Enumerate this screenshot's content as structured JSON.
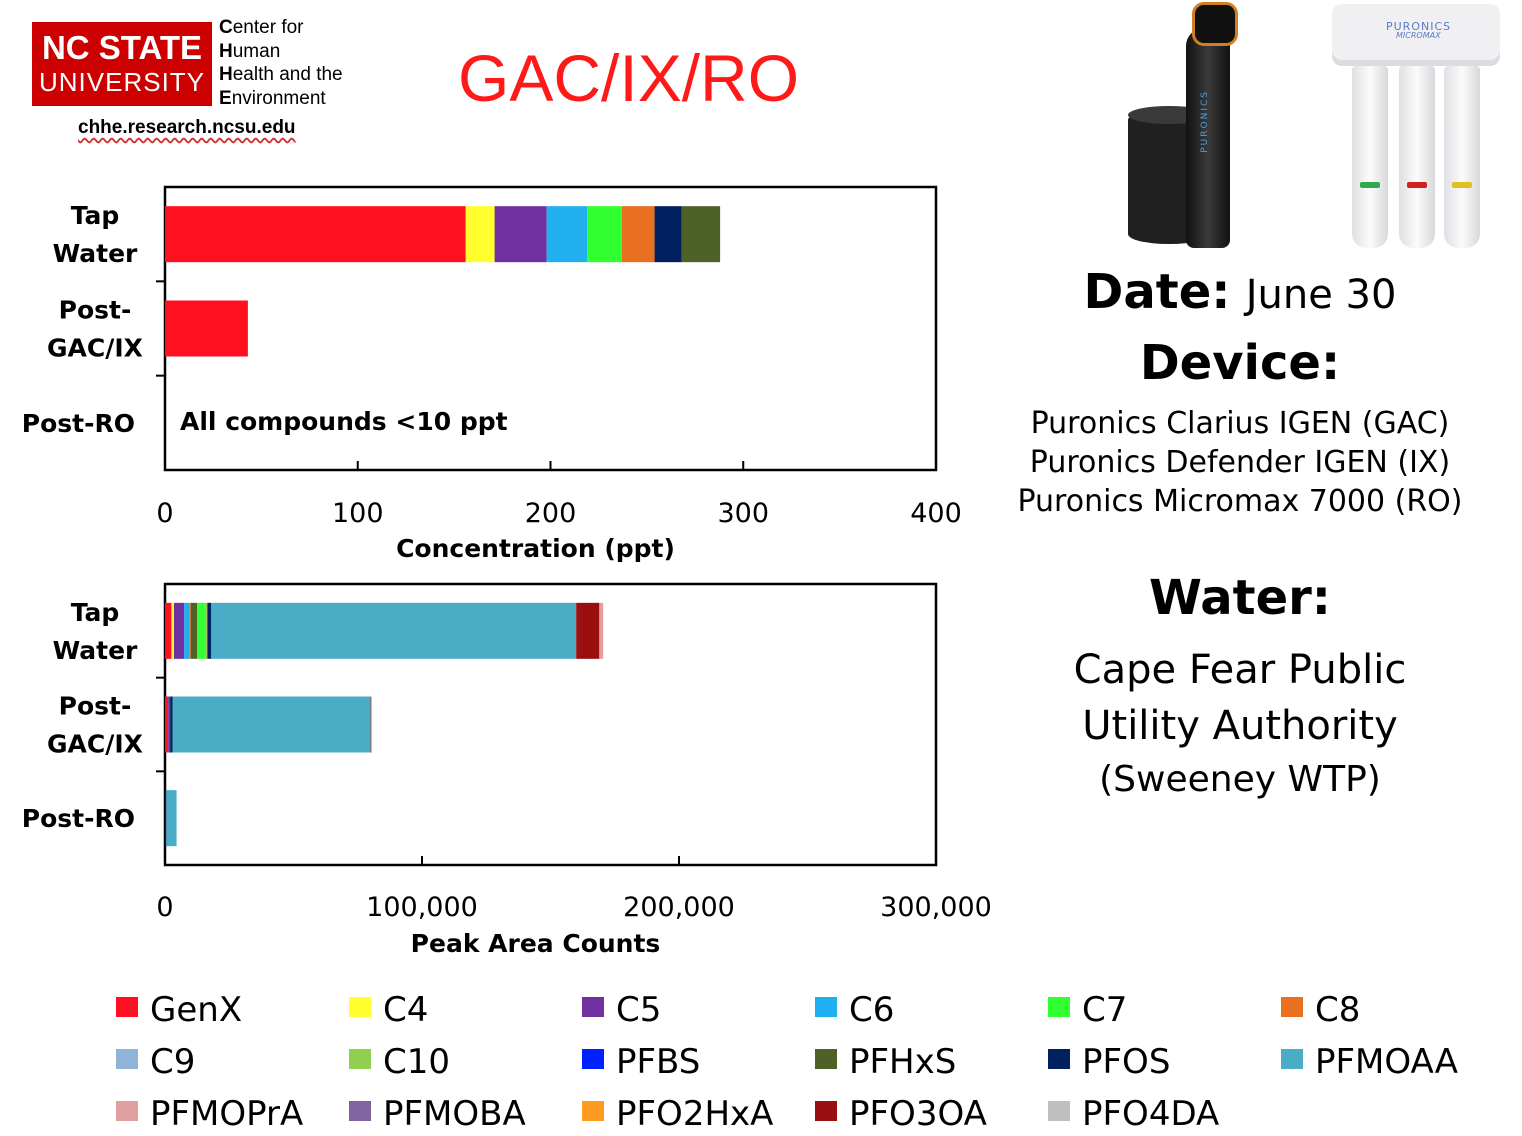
{
  "logo": {
    "line1": "NC STATE",
    "line2": "UNIVERSITY"
  },
  "center_name": [
    {
      "initial": "C",
      "rest": "enter for"
    },
    {
      "initial": "H",
      "rest": "uman"
    },
    {
      "initial": "H",
      "rest": "ealth and the"
    },
    {
      "initial": "E",
      "rest": "nvironment"
    }
  ],
  "site_url": "chhe.research.ncsu.edu",
  "title": "GAC/IX/RO",
  "info": {
    "date_label": "Date:",
    "date_value": "June 30",
    "device_label": "Device:",
    "devices": [
      "Puronics Clarius IGEN (GAC)",
      "Puronics Defender IGEN (IX)",
      "Puronics Micromax 7000 (RO)"
    ],
    "water_label": "Water:",
    "water_name_1": "Cape Fear Public",
    "water_name_2": "Utility Authority",
    "water_sub": "(Sweeney WTP)"
  },
  "products": {
    "softener_brand": "PURONICS",
    "ro_brand": "PURONICS",
    "ro_model": "MICROMAX"
  },
  "legend": [
    {
      "name": "GenX",
      "color": "#ff1020"
    },
    {
      "name": "C4",
      "color": "#ffff30"
    },
    {
      "name": "C5",
      "color": "#7030a0"
    },
    {
      "name": "C6",
      "color": "#20b0f0"
    },
    {
      "name": "C7",
      "color": "#30ff30"
    },
    {
      "name": "C8",
      "color": "#e87020"
    },
    {
      "name": "C9",
      "color": "#90b4d8"
    },
    {
      "name": "C10",
      "color": "#90d050"
    },
    {
      "name": "PFBS",
      "color": "#0020ff"
    },
    {
      "name": "PFHxS",
      "color": "#4e6228"
    },
    {
      "name": "PFOS",
      "color": "#002060"
    },
    {
      "name": "PFMOAA",
      "color": "#4bacc6"
    },
    {
      "name": "PFMOPrA",
      "color": "#e0a0a0"
    },
    {
      "name": "PFMOBA",
      "color": "#8064a2"
    },
    {
      "name": "PFO2HxA",
      "color": "#ff9a20"
    },
    {
      "name": "PFO3OA",
      "color": "#9a1010"
    },
    {
      "name": "PFO4DA",
      "color": "#bfbfbf"
    }
  ],
  "chart_data": [
    {
      "type": "bar",
      "orientation": "horizontal",
      "stacked": true,
      "categories": [
        "Tap\nWater",
        "Post-\nGAC/IX",
        "Post-RO"
      ],
      "xlabel": "Concentration (ppt)",
      "xlim": [
        0,
        400
      ],
      "xticks": [
        "0",
        "100",
        "200",
        "300",
        "400"
      ],
      "xtick_values": [
        0,
        100,
        200,
        300,
        400
      ],
      "annotation": "All compounds <10 ppt",
      "series": [
        {
          "name": "GenX",
          "color": "#ff1020",
          "values": [
            156,
            43,
            0
          ]
        },
        {
          "name": "C4",
          "color": "#ffff30",
          "values": [
            15,
            0,
            0
          ]
        },
        {
          "name": "C5",
          "color": "#7030a0",
          "values": [
            27,
            0,
            0
          ]
        },
        {
          "name": "C6",
          "color": "#20b0f0",
          "values": [
            21,
            0,
            0
          ]
        },
        {
          "name": "C7",
          "color": "#30ff30",
          "values": [
            18,
            0,
            0
          ]
        },
        {
          "name": "C8",
          "color": "#e87020",
          "values": [
            17,
            0,
            0
          ]
        },
        {
          "name": "PFOS",
          "color": "#002060",
          "values": [
            14,
            0,
            0
          ]
        },
        {
          "name": "PFHxS",
          "color": "#4e6228",
          "values": [
            20,
            0,
            0
          ]
        }
      ]
    },
    {
      "type": "bar",
      "orientation": "horizontal",
      "stacked": true,
      "categories": [
        "Tap\nWater",
        "Post-\nGAC/IX",
        "Post-RO"
      ],
      "xlabel": "Peak Area Counts",
      "xlim": [
        0,
        300000
      ],
      "xticks": [
        "0",
        "100,000",
        "200,000",
        "300,000"
      ],
      "xtick_values": [
        0,
        100000,
        200000,
        300000
      ],
      "series": [
        {
          "name": "GenX",
          "color": "#ff1020",
          "values": [
            2500,
            1000,
            0
          ]
        },
        {
          "name": "C4",
          "color": "#ffff30",
          "values": [
            1000,
            0,
            0
          ]
        },
        {
          "name": "C5",
          "color": "#7030a0",
          "values": [
            4000,
            500,
            0
          ]
        },
        {
          "name": "C6",
          "color": "#20b0f0",
          "values": [
            2000,
            0,
            0
          ]
        },
        {
          "name": "C8",
          "color": "#e87020",
          "values": [
            500,
            0,
            0
          ]
        },
        {
          "name": "PFHxS",
          "color": "#4e6228",
          "values": [
            2500,
            500,
            0
          ]
        },
        {
          "name": "C7",
          "color": "#30ff30",
          "values": [
            3000,
            0,
            0
          ]
        },
        {
          "name": "C10",
          "color": "#90d050",
          "values": [
            1000,
            0,
            0
          ]
        },
        {
          "name": "PFOS",
          "color": "#002060",
          "values": [
            1500,
            1000,
            500
          ]
        },
        {
          "name": "PFMOAA",
          "color": "#4bacc6",
          "values": [
            142000,
            77000,
            4000
          ]
        },
        {
          "name": "PFO3OA",
          "color": "#9a1010",
          "values": [
            9000,
            200,
            0
          ]
        },
        {
          "name": "PFMOPrA",
          "color": "#e0a0a0",
          "values": [
            1500,
            300,
            0
          ]
        }
      ]
    }
  ]
}
